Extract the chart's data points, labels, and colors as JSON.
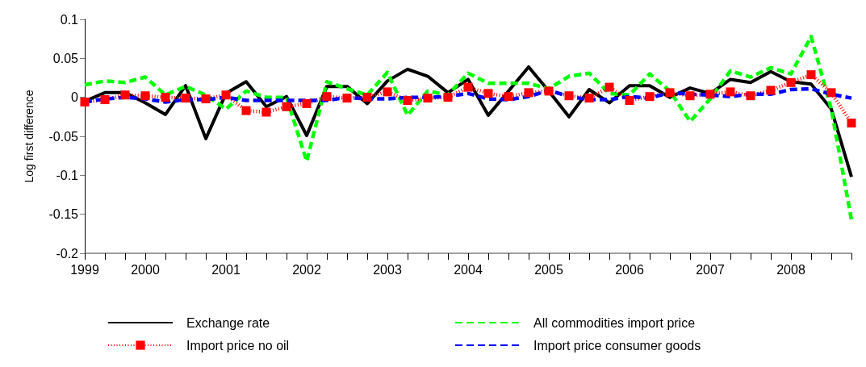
{
  "chart_data": {
    "type": "line",
    "ylabel": "Log first difference",
    "categories": [
      "1999",
      null,
      null,
      "2000",
      null,
      null,
      null,
      "2001",
      null,
      null,
      null,
      "2002",
      null,
      null,
      null,
      "2003",
      null,
      null,
      null,
      "2004",
      null,
      null,
      null,
      "2005",
      null,
      null,
      null,
      "2006",
      null,
      null,
      null,
      "2007",
      null,
      null,
      null,
      "2008",
      null,
      null,
      null
    ],
    "series": [
      {
        "name": "Exchange rate",
        "color": "#000000",
        "line_style": "solid",
        "marker": "none",
        "values": [
          -0.005,
          0.006,
          0.006,
          -0.007,
          -0.022,
          0.015,
          -0.053,
          0.005,
          0.02,
          -0.012,
          0.001,
          -0.049,
          0.014,
          0.014,
          -0.008,
          0.021,
          0.036,
          0.027,
          0.006,
          0.023,
          -0.023,
          0.008,
          0.039,
          0.008,
          -0.025,
          0.01,
          -0.007,
          0.015,
          0.015,
          0,
          0.012,
          0.005,
          0.023,
          0.019,
          0.033,
          0.02,
          0.017,
          -0.015,
          -0.102
        ]
      },
      {
        "name": "All commodities import price",
        "color": "#00ff00",
        "line_style": "dashed",
        "marker": "none",
        "values": [
          0.016,
          0.021,
          0.019,
          0.026,
          0.003,
          0.014,
          0.003,
          -0.015,
          0.008,
          0,
          0,
          -0.082,
          0.02,
          0.011,
          0.003,
          0.032,
          -0.023,
          0.008,
          0.003,
          0.031,
          0.018,
          0.018,
          0.018,
          0.011,
          0.027,
          0.031,
          0.005,
          0.003,
          0.03,
          0.008,
          -0.031,
          -0.002,
          0.034,
          0.026,
          0.038,
          0.03,
          0.078,
          -0.015,
          -0.157
        ]
      },
      {
        "name": "Import price no oil",
        "color": "#ff0000",
        "line_style": "dotted",
        "marker": "square",
        "values": [
          -0.006,
          -0.003,
          0.003,
          0.002,
          0,
          -0.001,
          -0.002,
          0.003,
          -0.017,
          -0.019,
          -0.012,
          -0.008,
          0.001,
          -0.001,
          0,
          0.007,
          -0.004,
          -0.001,
          0,
          0.013,
          0.005,
          0.001,
          0.006,
          0.008,
          0.002,
          -0.001,
          0.013,
          -0.004,
          0.001,
          0.006,
          0.002,
          0.004,
          0.007,
          0.002,
          0.009,
          0.019,
          0.029,
          0.006,
          -0.033
        ]
      },
      {
        "name": "Import price consumer goods",
        "color": "#0000ff",
        "line_style": "dashed",
        "marker": "none",
        "values": [
          -0.006,
          -0.002,
          0,
          -0.002,
          -0.006,
          -0.003,
          -0.003,
          0,
          -0.004,
          -0.004,
          -0.004,
          -0.004,
          -0.004,
          0,
          -0.002,
          -0.002,
          0,
          0,
          0.001,
          0.005,
          -0.002,
          -0.003,
          0.001,
          0.009,
          0.001,
          -0.003,
          -0.003,
          0.001,
          -0.001,
          0.006,
          0.004,
          0.003,
          0.001,
          0.004,
          0.004,
          0.01,
          0.011,
          0.004,
          -0.001
        ]
      }
    ],
    "ylim": [
      -0.2,
      0.1
    ],
    "yticks": [
      -0.2,
      -0.15,
      -0.1,
      -0.05,
      0,
      0.05,
      0.1
    ],
    "grid": false,
    "legend": "bottom"
  }
}
